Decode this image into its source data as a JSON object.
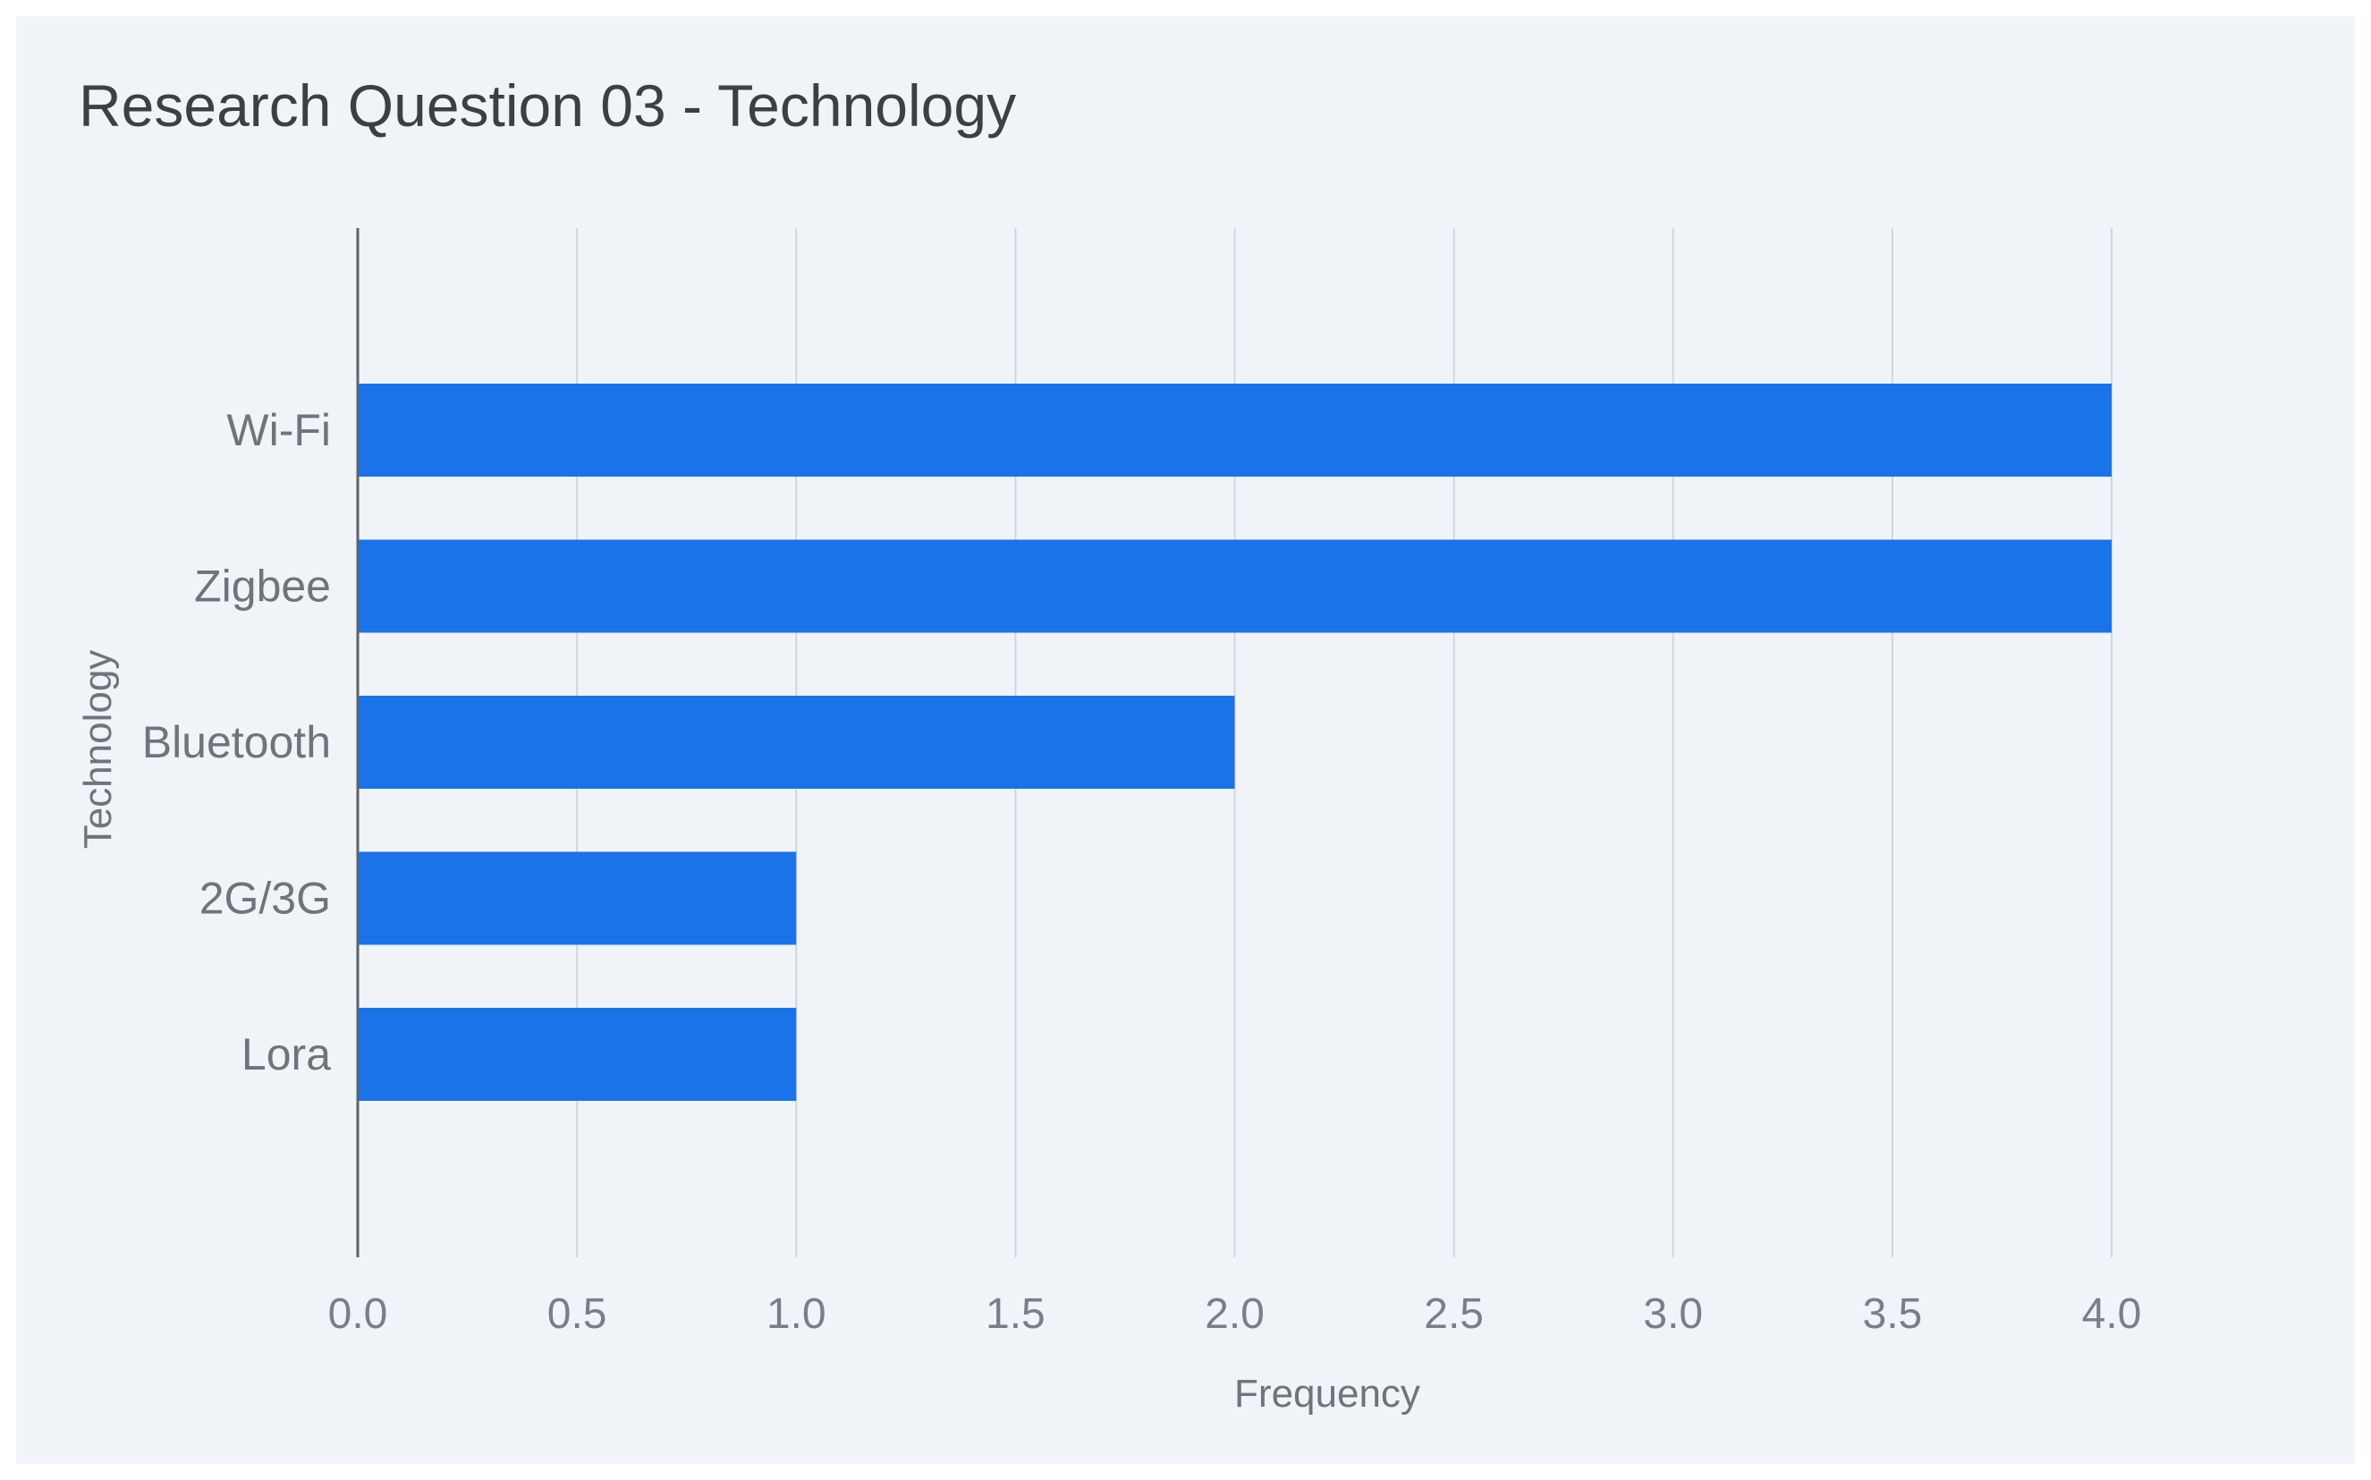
{
  "chart_data": {
    "type": "bar",
    "orientation": "horizontal",
    "title": "Research Question 03 - Technology",
    "xlabel": "Frequency",
    "ylabel": "Technology",
    "categories": [
      "Wi-Fi",
      "Zigbee",
      "Bluetooth",
      "2G/3G",
      "Lora"
    ],
    "values": [
      4,
      4,
      2,
      1,
      1
    ],
    "xlim": [
      0,
      4
    ],
    "xticks": [
      "0.0",
      "0.5",
      "1.0",
      "1.5",
      "2.0",
      "2.5",
      "3.0",
      "3.5",
      "4.0"
    ],
    "grid": true,
    "legend": "none",
    "colors": {
      "bar": "#1a73e8",
      "background": "#f0f3f8"
    }
  }
}
